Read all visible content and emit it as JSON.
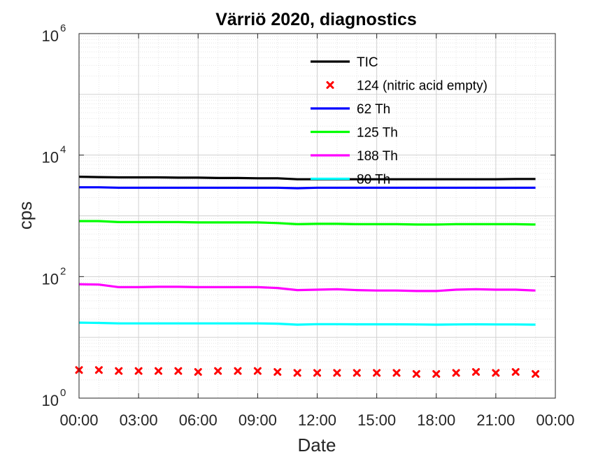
{
  "chart_data": {
    "type": "line",
    "title": "Värriö 2020, diagnostics",
    "xlabel": "Date",
    "ylabel": "cps",
    "yscale": "log",
    "ylim": [
      1,
      1000000
    ],
    "xlim": [
      "00:00",
      "24:00"
    ],
    "grid": true,
    "legend_position": "top-right",
    "x_tick_labels": [
      "00:00",
      "03:00",
      "06:00",
      "09:00",
      "12:00",
      "15:00",
      "18:00",
      "21:00",
      "00:00"
    ],
    "y_ticks": [
      {
        "value": 1,
        "base": "10",
        "exp": "0"
      },
      {
        "value": 100,
        "base": "10",
        "exp": "2"
      },
      {
        "value": 10000,
        "base": "10",
        "exp": "4"
      },
      {
        "value": 1000000,
        "base": "10",
        "exp": "6"
      }
    ],
    "x_hours": [
      0,
      1,
      2,
      3,
      4,
      5,
      6,
      7,
      8,
      9,
      10,
      11,
      12,
      13,
      14,
      15,
      16,
      17,
      18,
      19,
      20,
      21,
      22,
      23
    ],
    "series": [
      {
        "name": "TIC",
        "style": "line",
        "color": "#000000",
        "values": [
          4400,
          4350,
          4300,
          4300,
          4300,
          4250,
          4250,
          4200,
          4200,
          4150,
          4150,
          4000,
          4000,
          4000,
          4000,
          4000,
          4000,
          4000,
          4000,
          4000,
          4000,
          4000,
          4050,
          4050
        ]
      },
      {
        "name": "124 (nitric acid empty)",
        "style": "marker",
        "color": "#ff0000",
        "values": [
          2.9,
          2.9,
          2.8,
          2.8,
          2.8,
          2.8,
          2.7,
          2.8,
          2.8,
          2.8,
          2.7,
          2.6,
          2.6,
          2.6,
          2.6,
          2.6,
          2.6,
          2.5,
          2.5,
          2.6,
          2.7,
          2.6,
          2.7,
          2.5
        ]
      },
      {
        "name": "62 Th",
        "style": "line",
        "color": "#0000ff",
        "values": [
          2950,
          2950,
          2900,
          2900,
          2900,
          2900,
          2900,
          2900,
          2900,
          2900,
          2900,
          2850,
          2900,
          2900,
          2900,
          2900,
          2900,
          2900,
          2900,
          2900,
          2900,
          2900,
          2900,
          2900
        ]
      },
      {
        "name": "125 Th",
        "style": "line",
        "color": "#00ff00",
        "values": [
          820,
          820,
          790,
          790,
          790,
          790,
          780,
          780,
          780,
          780,
          760,
          730,
          740,
          740,
          730,
          730,
          730,
          720,
          720,
          730,
          730,
          730,
          730,
          720
        ]
      },
      {
        "name": "188 Th",
        "style": "line",
        "color": "#ff00ff",
        "values": [
          75,
          74,
          67,
          67,
          68,
          68,
          67,
          67,
          67,
          67,
          65,
          60,
          61,
          62,
          60,
          59,
          59,
          58,
          58,
          61,
          62,
          61,
          61,
          59
        ]
      },
      {
        "name": "80 Th",
        "style": "line",
        "color": "#00ffff",
        "values": [
          17.5,
          17.3,
          17,
          17,
          17,
          17,
          17,
          17,
          17,
          17,
          16.8,
          16.2,
          16.5,
          16.5,
          16.4,
          16.4,
          16.4,
          16.3,
          16.2,
          16.3,
          16.4,
          16.3,
          16.3,
          16.2
        ]
      }
    ]
  }
}
